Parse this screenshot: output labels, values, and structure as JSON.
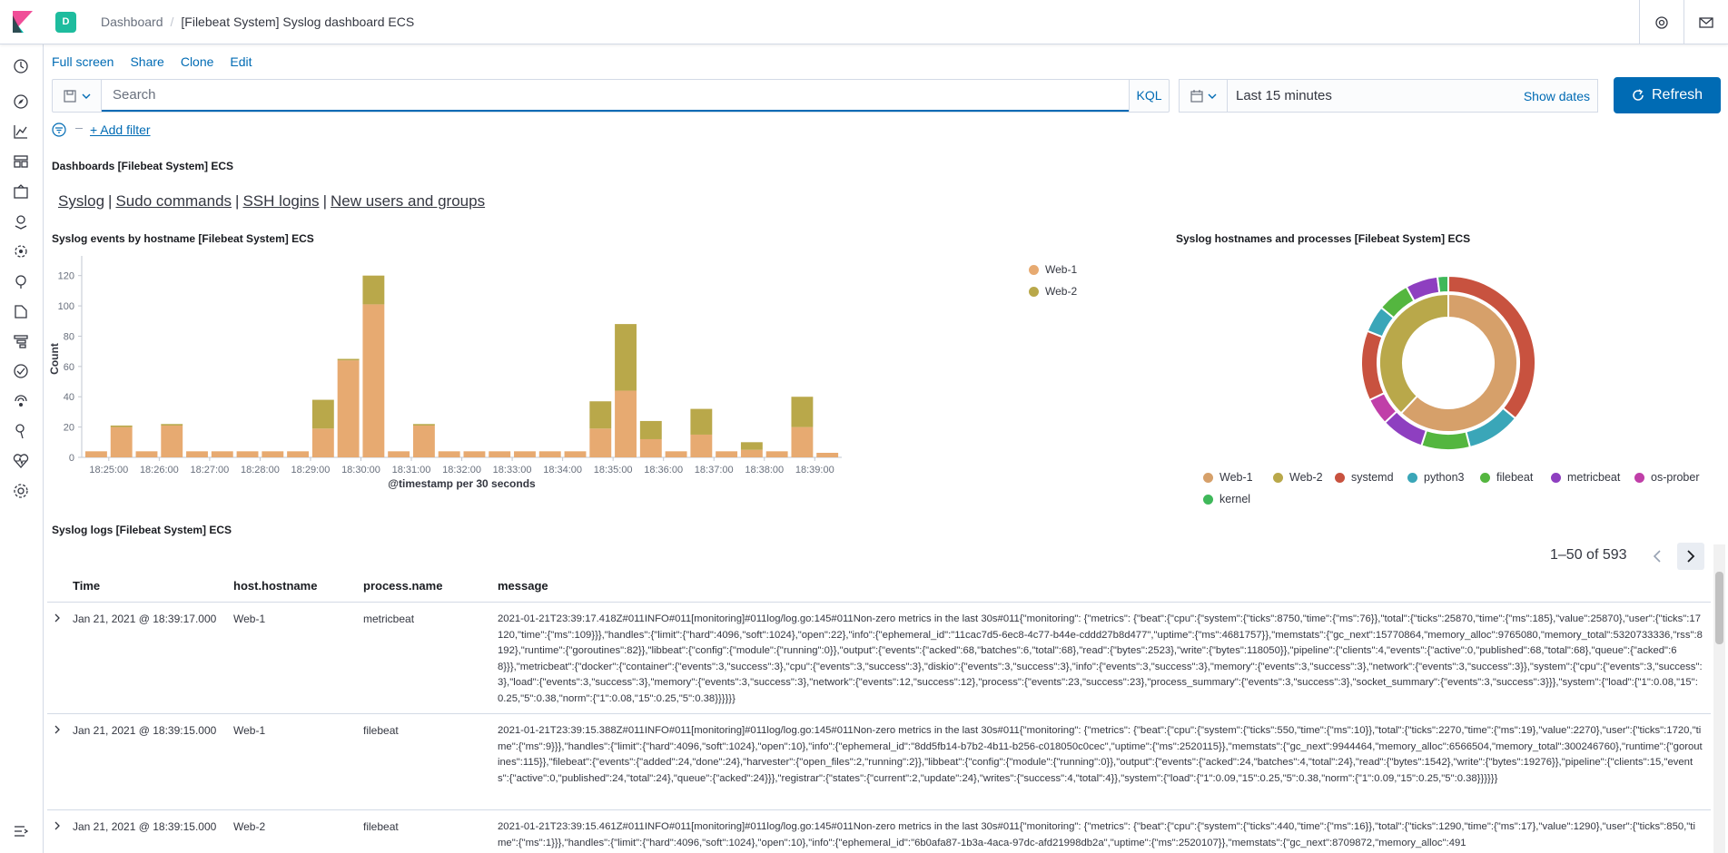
{
  "header": {
    "space_initial": "D",
    "breadcrumb_root": "Dashboard",
    "breadcrumb_current": "[Filebeat System] Syslog dashboard ECS"
  },
  "topmenu": [
    "Full screen",
    "Share",
    "Clone",
    "Edit"
  ],
  "query": {
    "placeholder": "Search",
    "language": "KQL",
    "time_range": "Last 15 minutes",
    "show_dates": "Show dates",
    "refresh": "Refresh",
    "add_filter": "+ Add filter"
  },
  "markdown_panel": {
    "title": "Dashboards [Filebeat System] ECS",
    "links": [
      "Syslog",
      "Sudo commands",
      "SSH logins",
      "New users and groups"
    ]
  },
  "bar_panel_title": "Syslog events by hostname [Filebeat System] ECS",
  "donut_panel_title": "Syslog hostnames and processes [Filebeat System] ECS",
  "chart_data": [
    {
      "type": "bar",
      "stacked": true,
      "title": "Syslog events by hostname [Filebeat System] ECS",
      "xlabel": "@timestamp per 30 seconds",
      "ylabel": "Count",
      "ylim": [
        0,
        130
      ],
      "yticks": [
        0,
        20,
        40,
        60,
        80,
        100,
        120
      ],
      "xticks": [
        "18:25:00",
        "18:26:00",
        "18:27:00",
        "18:28:00",
        "18:29:00",
        "18:30:00",
        "18:31:00",
        "18:32:00",
        "18:33:00",
        "18:34:00",
        "18:35:00",
        "18:36:00",
        "18:37:00",
        "18:38:00",
        "18:39:00"
      ],
      "legend_position": "top-right",
      "series": [
        {
          "name": "Web-1",
          "color": "#e7aa71",
          "values": [
            4,
            20,
            4,
            21,
            4,
            4,
            4,
            4,
            4,
            19,
            64,
            101,
            4,
            21,
            4,
            4,
            4,
            4,
            4,
            4,
            19,
            44,
            12,
            4,
            15,
            4,
            5,
            4,
            20,
            3
          ]
        },
        {
          "name": "Web-2",
          "color": "#b9a84a",
          "values": [
            0,
            1,
            0,
            1,
            0,
            0,
            0,
            0,
            0,
            19,
            1,
            19,
            0,
            1,
            0,
            0,
            0,
            0,
            0,
            0,
            18,
            44,
            12,
            0,
            17,
            0,
            5,
            0,
            20,
            0
          ]
        }
      ]
    },
    {
      "type": "pie",
      "donut": true,
      "title": "Syslog hostnames and processes [Filebeat System] ECS",
      "inner_ring": [
        {
          "name": "Web-1",
          "value": 62,
          "color": "#d6a06a"
        },
        {
          "name": "Web-2",
          "value": 38,
          "color": "#b9a84a"
        }
      ],
      "outer_ring": [
        {
          "name": "systemd",
          "value": 36,
          "color": "#c8523f"
        },
        {
          "name": "python3",
          "value": 10,
          "color": "#3aa6b8"
        },
        {
          "name": "filebeat",
          "value": 9,
          "color": "#54b63f"
        },
        {
          "name": "metricbeat",
          "value": 8,
          "color": "#8e3fc0"
        },
        {
          "name": "os-prober",
          "value": 5,
          "color": "#c03fa8"
        },
        {
          "name": "systemd",
          "value": 13,
          "color": "#c8523f"
        },
        {
          "name": "python3",
          "value": 5,
          "color": "#3aa6b8"
        },
        {
          "name": "filebeat",
          "value": 6,
          "color": "#54b63f"
        },
        {
          "name": "metricbeat",
          "value": 6,
          "color": "#8e3fc0"
        },
        {
          "name": "kernel",
          "value": 2,
          "color": "#3fb85a"
        }
      ],
      "legend": [
        {
          "name": "Web-1",
          "color": "#d6a06a"
        },
        {
          "name": "Web-2",
          "color": "#b9a84a"
        },
        {
          "name": "systemd",
          "color": "#c8523f"
        },
        {
          "name": "python3",
          "color": "#3aa6b8"
        },
        {
          "name": "filebeat",
          "color": "#54b63f"
        },
        {
          "name": "metricbeat",
          "color": "#8e3fc0"
        },
        {
          "name": "os-prober",
          "color": "#c03fa8"
        },
        {
          "name": "kernel",
          "color": "#3fb85a"
        }
      ]
    }
  ],
  "logs": {
    "title": "Syslog logs [Filebeat System] ECS",
    "pagination": "1–50 of 593",
    "columns": [
      "Time",
      "host.hostname",
      "process.name",
      "message"
    ],
    "rows": [
      {
        "time": "Jan 21, 2021 @ 18:39:17.000",
        "host": "Web-1",
        "process": "metricbeat",
        "message": "2021-01-21T23:39:17.418Z#011INFO#011[monitoring]#011log/log.go:145#011Non-zero metrics in the last 30s#011{\"monitoring\": {\"metrics\": {\"beat\":{\"cpu\":{\"system\":{\"ticks\":8750,\"time\":{\"ms\":76}},\"total\":{\"ticks\":25870,\"time\":{\"ms\":185},\"value\":25870},\"user\":{\"ticks\":17120,\"time\":{\"ms\":109}}},\"handles\":{\"limit\":{\"hard\":4096,\"soft\":1024},\"open\":22},\"info\":{\"ephemeral_id\":\"11cac7d5-6ec8-4c77-b44e-cddd27b8d477\",\"uptime\":{\"ms\":4681757}},\"memstats\":{\"gc_next\":15770864,\"memory_alloc\":9765080,\"memory_total\":5320733336,\"rss\":8192},\"runtime\":{\"goroutines\":82}},\"libbeat\":{\"config\":{\"module\":{\"running\":0}},\"output\":{\"events\":{\"acked\":68,\"batches\":6,\"total\":68},\"read\":{\"bytes\":2523},\"write\":{\"bytes\":118050}},\"pipeline\":{\"clients\":4,\"events\":{\"active\":0,\"published\":68,\"total\":68},\"queue\":{\"acked\":68}}},\"metricbeat\":{\"docker\":{\"container\":{\"events\":3,\"success\":3},\"cpu\":{\"events\":3,\"success\":3},\"diskio\":{\"events\":3,\"success\":3},\"info\":{\"events\":3,\"success\":3},\"memory\":{\"events\":3,\"success\":3},\"network\":{\"events\":3,\"success\":3}},\"system\":{\"cpu\":{\"events\":3,\"success\":3},\"load\":{\"events\":3,\"success\":3},\"memory\":{\"events\":3,\"success\":3},\"network\":{\"events\":12,\"success\":12},\"process\":{\"events\":23,\"success\":23},\"process_summary\":{\"events\":3,\"success\":3},\"socket_summary\":{\"events\":3,\"success\":3}}},\"system\":{\"load\":{\"1\":0.08,\"15\":0.25,\"5\":0.38,\"norm\":{\"1\":0.08,\"15\":0.25,\"5\":0.38}}}}}}"
      },
      {
        "time": "Jan 21, 2021 @ 18:39:15.000",
        "host": "Web-1",
        "process": "filebeat",
        "message": "2021-01-21T23:39:15.388Z#011INFO#011[monitoring]#011log/log.go:145#011Non-zero metrics in the last 30s#011{\"monitoring\": {\"metrics\": {\"beat\":{\"cpu\":{\"system\":{\"ticks\":550,\"time\":{\"ms\":10}},\"total\":{\"ticks\":2270,\"time\":{\"ms\":19},\"value\":2270},\"user\":{\"ticks\":1720,\"time\":{\"ms\":9}}},\"handles\":{\"limit\":{\"hard\":4096,\"soft\":1024},\"open\":10},\"info\":{\"ephemeral_id\":\"8dd5fb14-b7b2-4b11-b256-c018050c0cec\",\"uptime\":{\"ms\":2520115}},\"memstats\":{\"gc_next\":9944464,\"memory_alloc\":6566504,\"memory_total\":300246760},\"runtime\":{\"goroutines\":115}},\"filebeat\":{\"events\":{\"added\":24,\"done\":24},\"harvester\":{\"open_files\":2,\"running\":2}},\"libbeat\":{\"config\":{\"module\":{\"running\":0}},\"output\":{\"events\":{\"acked\":24,\"batches\":4,\"total\":24},\"read\":{\"bytes\":1542},\"write\":{\"bytes\":19276}},\"pipeline\":{\"clients\":15,\"events\":{\"active\":0,\"published\":24,\"total\":24},\"queue\":{\"acked\":24}}},\"registrar\":{\"states\":{\"current\":2,\"update\":24},\"writes\":{\"success\":4,\"total\":4}},\"system\":{\"load\":{\"1\":0.09,\"15\":0.25,\"5\":0.38,\"norm\":{\"1\":0.09,\"15\":0.25,\"5\":0.38}}}}}}"
      },
      {
        "time": "Jan 21, 2021 @ 18:39:15.000",
        "host": "Web-2",
        "process": "filebeat",
        "message": "2021-01-21T23:39:15.461Z#011INFO#011[monitoring]#011log/log.go:145#011Non-zero metrics in the last 30s#011{\"monitoring\": {\"metrics\": {\"beat\":{\"cpu\":{\"system\":{\"ticks\":440,\"time\":{\"ms\":16}},\"total\":{\"ticks\":1290,\"time\":{\"ms\":17},\"value\":1290},\"user\":{\"ticks\":850,\"time\":{\"ms\":1}}},\"handles\":{\"limit\":{\"hard\":4096,\"soft\":1024},\"open\":10},\"info\":{\"ephemeral_id\":\"6b0afa87-1b3a-4aca-97dc-afd21998db2a\",\"uptime\":{\"ms\":2520107}},\"memstats\":{\"gc_next\":8709872,\"memory_alloc\":491"
      }
    ]
  }
}
